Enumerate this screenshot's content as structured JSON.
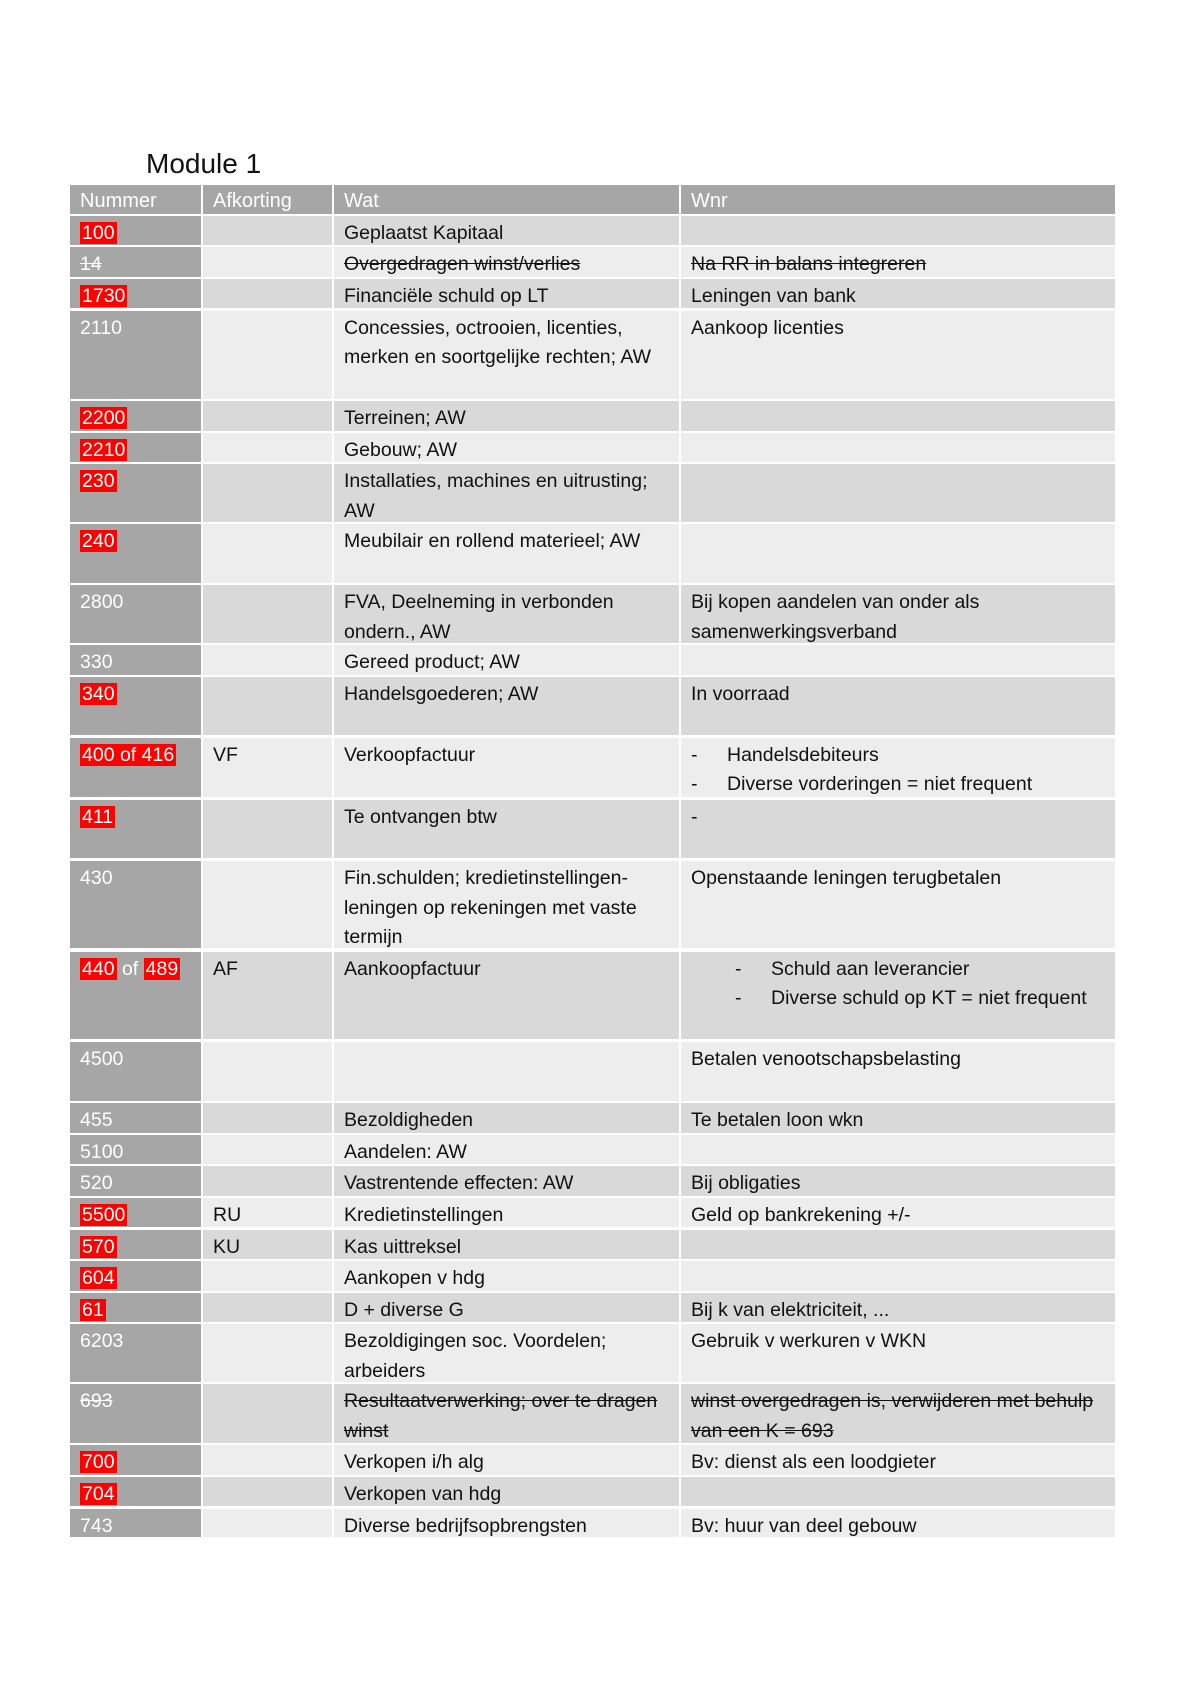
{
  "title": "Module 1",
  "headers": [
    "Nummer",
    "Afkorting",
    "Wat",
    "Wnr"
  ],
  "colors": {
    "highlight": "#ff0000",
    "header": "#a6a6a6",
    "row_dark": "#d9d9d9",
    "row_light": "#ededed"
  },
  "rows": [
    {
      "nummer": [
        {
          "text": "100",
          "highlight": true
        }
      ],
      "afkorting": "",
      "wat": "Geplaatst Kapitaal",
      "wnr": [],
      "strike": false
    },
    {
      "nummer": [
        {
          "text": "14",
          "highlight": false
        }
      ],
      "afkorting": "",
      "wat": "Overgedragen winst/verlies",
      "wnr": [
        "Na RR in balans integreren"
      ],
      "strike": true
    },
    {
      "nummer": [
        {
          "text": "1730",
          "highlight": true
        }
      ],
      "afkorting": "",
      "wat": "Financiële schuld op LT",
      "wnr": [
        "Leningen van bank"
      ],
      "strike": false
    },
    {
      "nummer": [
        {
          "text": "2110",
          "highlight": false
        }
      ],
      "afkorting": "",
      "wat": "Concessies, octrooien, licenties, merken en soortgelijke rechten; AW",
      "wnr": [
        "Aankoop licenties"
      ],
      "strike": false
    },
    {
      "nummer": [
        {
          "text": "2200",
          "highlight": true
        }
      ],
      "afkorting": "",
      "wat": "Terreinen; AW",
      "wnr": [],
      "strike": false
    },
    {
      "nummer": [
        {
          "text": "2210",
          "highlight": true
        }
      ],
      "afkorting": "",
      "wat": "Gebouw; AW",
      "wnr": [],
      "strike": false
    },
    {
      "nummer": [
        {
          "text": "230",
          "highlight": true
        }
      ],
      "afkorting": "",
      "wat": "Installaties, machines en uitrusting; AW",
      "wnr": [],
      "strike": false
    },
    {
      "nummer": [
        {
          "text": "240",
          "highlight": true
        }
      ],
      "afkorting": "",
      "wat": "Meubilair en rollend materieel; AW",
      "wnr": [],
      "strike": false
    },
    {
      "nummer": [
        {
          "text": "2800",
          "highlight": false
        }
      ],
      "afkorting": "",
      "wat": "FVA, Deelneming in verbonden ondern., AW",
      "wnr": [
        "Bij kopen aandelen van onder als samenwerkingsverband"
      ],
      "strike": false
    },
    {
      "nummer": [
        {
          "text": "330",
          "highlight": false
        }
      ],
      "afkorting": "",
      "wat": "Gereed product; AW",
      "wnr": [],
      "strike": false
    },
    {
      "nummer": [
        {
          "text": "340",
          "highlight": true
        }
      ],
      "afkorting": "",
      "wat": "Handelsgoederen; AW",
      "wnr": [
        "In voorraad"
      ],
      "strike": false
    },
    {
      "nummer": [
        {
          "text": "400 of 416",
          "highlight": true
        }
      ],
      "afkorting": "VF",
      "wat": "Verkoopfactuur",
      "wnr_bullets": [
        "Handelsdebiteurs",
        "Diverse vorderingen = niet frequent"
      ],
      "strike": false
    },
    {
      "nummer": [
        {
          "text": "411",
          "highlight": true
        }
      ],
      "afkorting": "",
      "wat": "Te ontvangen btw",
      "wnr": [
        "-"
      ],
      "strike": false
    },
    {
      "nummer": [
        {
          "text": "430",
          "highlight": false
        }
      ],
      "afkorting": "",
      "wat": "Fin.schulden; kredietinstellingen-leningen op rekeningen met vaste termijn",
      "wnr": [
        "Openstaande leningen terugbetalen"
      ],
      "strike": false
    },
    {
      "nummer": [
        {
          "text": "440",
          "highlight": true
        },
        {
          "text": " of ",
          "highlight": false
        },
        {
          "text": "489",
          "highlight": true
        }
      ],
      "afkorting": "AF",
      "wat": "Aankoopfactuur",
      "wnr_bullets": [
        "Schuld aan leverancier",
        "Diverse schuld op KT = niet frequent"
      ],
      "indent": true,
      "strike": false
    },
    {
      "nummer": [
        {
          "text": "4500",
          "highlight": false
        }
      ],
      "afkorting": "",
      "wat": "",
      "wnr": [
        "Betalen venootschapsbelasting"
      ],
      "strike": false
    },
    {
      "nummer": [
        {
          "text": "455",
          "highlight": false
        }
      ],
      "afkorting": "",
      "wat": "Bezoldigheden",
      "wnr": [
        "Te betalen loon wkn"
      ],
      "strike": false
    },
    {
      "nummer": [
        {
          "text": "5100",
          "highlight": false
        }
      ],
      "afkorting": "",
      "wat": "Aandelen: AW",
      "wnr": [],
      "strike": false
    },
    {
      "nummer": [
        {
          "text": "520",
          "highlight": false
        }
      ],
      "afkorting": "",
      "wat": "Vastrentende effecten: AW",
      "wnr": [
        "Bij obligaties"
      ],
      "strike": false
    },
    {
      "nummer": [
        {
          "text": "5500",
          "highlight": true
        }
      ],
      "afkorting": "RU",
      "wat": "Kredietinstellingen",
      "wnr": [
        "Geld op bankrekening +/-"
      ],
      "strike": false
    },
    {
      "nummer": [
        {
          "text": "570",
          "highlight": true
        }
      ],
      "afkorting": "KU",
      "wat": "Kas uittreksel",
      "wnr": [],
      "strike": false
    },
    {
      "nummer": [
        {
          "text": "604",
          "highlight": true
        }
      ],
      "afkorting": "",
      "wat": "Aankopen v hdg",
      "wnr": [],
      "strike": false
    },
    {
      "nummer": [
        {
          "text": "61",
          "highlight": true
        }
      ],
      "afkorting": "",
      "wat": "D + diverse G",
      "wnr": [
        "Bij k van elektriciteit, ..."
      ],
      "strike": false
    },
    {
      "nummer": [
        {
          "text": "6203",
          "highlight": false
        }
      ],
      "afkorting": "",
      "wat": "Bezoldigingen soc. Voordelen; arbeiders",
      "wnr": [
        "Gebruik v werkuren v WKN"
      ],
      "strike": false
    },
    {
      "nummer": [
        {
          "text": "693",
          "highlight": false
        }
      ],
      "afkorting": "",
      "wat": "Resultaatverwerking; over te dragen winst",
      "wnr": [
        "winst overgedragen is, verwijderen met behulp van een K = 693"
      ],
      "strike": true
    },
    {
      "nummer": [
        {
          "text": "700",
          "highlight": true
        }
      ],
      "afkorting": "",
      "wat": "Verkopen i/h alg",
      "wnr": [
        "Bv: dienst als een loodgieter"
      ],
      "strike": false
    },
    {
      "nummer": [
        {
          "text": "704",
          "highlight": true
        }
      ],
      "afkorting": "",
      "wat": "Verkopen van hdg",
      "wnr": [],
      "strike": false
    },
    {
      "nummer": [
        {
          "text": "743",
          "highlight": false
        }
      ],
      "afkorting": "",
      "wat": "Diverse bedrijfsopbrengsten",
      "wnr": [
        "Bv: huur van deel gebouw"
      ],
      "strike": false
    }
  ]
}
